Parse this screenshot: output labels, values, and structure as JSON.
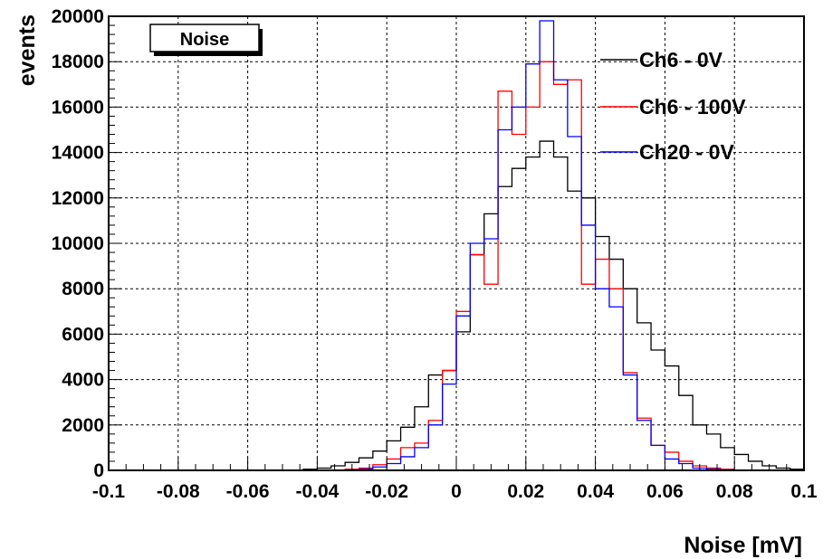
{
  "chart_data": {
    "type": "histogram",
    "title": "Noise",
    "xlabel": "Noise [mV]",
    "ylabel": "events",
    "xlim": [
      -0.1,
      0.1
    ],
    "ylim": [
      0,
      20000
    ],
    "grid": true,
    "legend_position": "top-right",
    "x_ticks": [
      "-0.1",
      "-0.08",
      "-0.06",
      "-0.04",
      "-0.02",
      "0",
      "0.02",
      "0.04",
      "0.06",
      "0.08",
      "0.1"
    ],
    "y_ticks": [
      "0",
      "2000",
      "4000",
      "6000",
      "8000",
      "10000",
      "12000",
      "14000",
      "16000",
      "18000",
      "20000"
    ],
    "bin_edges_start": -0.1,
    "bin_width": 0.004,
    "series": [
      {
        "name": "Ch6 - 0V",
        "color": "#000000",
        "values": [
          0,
          0,
          0,
          0,
          0,
          0,
          0,
          0,
          0,
          0,
          0,
          0,
          0,
          0,
          50,
          100,
          200,
          350,
          550,
          850,
          1300,
          1900,
          2800,
          4200,
          4400,
          6100,
          9500,
          11300,
          12500,
          13300,
          13800,
          14500,
          13800,
          12300,
          12000,
          10300,
          9300,
          8000,
          6500,
          5300,
          4600,
          3300,
          2000,
          1600,
          1000,
          700,
          400,
          200,
          100,
          50
        ]
      },
      {
        "name": "Ch6 - 100V",
        "color": "#ff0000",
        "values": [
          0,
          0,
          0,
          0,
          0,
          0,
          0,
          0,
          0,
          0,
          0,
          0,
          0,
          0,
          0,
          0,
          0,
          50,
          100,
          250,
          500,
          1000,
          1200,
          2200,
          4400,
          7000,
          9500,
          8200,
          16700,
          14800,
          16000,
          18000,
          17000,
          17200,
          8200,
          9300,
          8000,
          4300,
          2300,
          1100,
          800,
          400,
          200,
          100,
          50,
          0,
          0,
          0,
          0,
          0
        ]
      },
      {
        "name": "Ch20 - 0V",
        "color": "#0000ff",
        "values": [
          0,
          0,
          0,
          0,
          0,
          0,
          0,
          0,
          0,
          0,
          0,
          0,
          0,
          0,
          0,
          0,
          0,
          0,
          50,
          150,
          300,
          600,
          1000,
          2000,
          3800,
          6800,
          10000,
          10200,
          15000,
          16000,
          17900,
          19800,
          17200,
          14700,
          10800,
          8000,
          7200,
          4200,
          2200,
          1100,
          500,
          300,
          100,
          50,
          0,
          0,
          0,
          0,
          0,
          0
        ]
      }
    ]
  }
}
